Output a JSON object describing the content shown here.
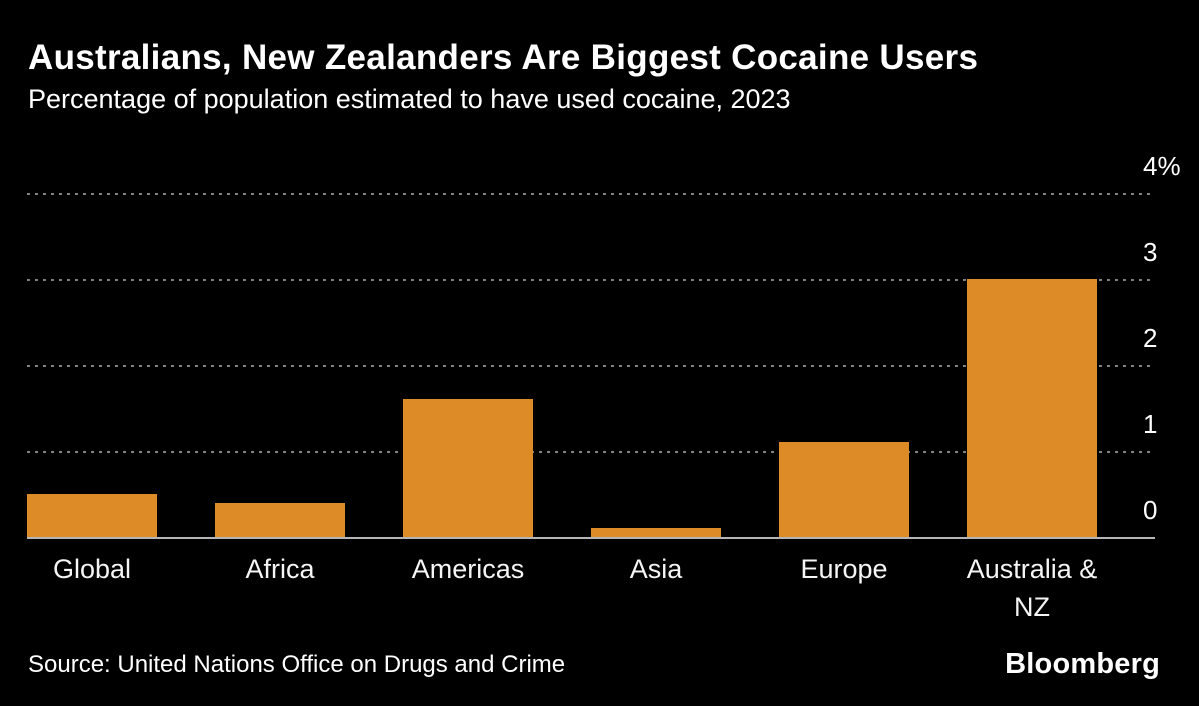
{
  "header": {
    "title": "Australians, New Zealanders Are Biggest Cocaine Users",
    "subtitle": "Percentage of population estimated to have used cocaine, 2023"
  },
  "footer": {
    "source": "Source: United Nations Office on Drugs and Crime",
    "brand": "Bloomberg"
  },
  "chart_data": {
    "type": "bar",
    "title": "Australians, New Zealanders Are Biggest Cocaine Users",
    "subtitle": "Percentage of population estimated to have used cocaine, 2023",
    "categories": [
      "Global",
      "Africa",
      "Americas",
      "Asia",
      "Europe",
      "Australia &\nNZ"
    ],
    "values": [
      0.5,
      0.4,
      1.6,
      0.1,
      1.1,
      3.0
    ],
    "unit": "%",
    "ylim": [
      0,
      4
    ],
    "yticks": [
      0,
      1,
      2,
      3,
      4
    ],
    "ytick_labels": [
      "0",
      "1",
      "2",
      "3",
      "4%"
    ],
    "legend": "none",
    "grid": "horizontal-dotted",
    "colors": {
      "background": "#000000",
      "bar": "#DC8B26",
      "gridline": "#828282",
      "baseline": "#b5b5b5",
      "text": "#ffffff"
    },
    "source": "Source: United Nations Office on Drugs and Crime",
    "brand": "Bloomberg"
  }
}
